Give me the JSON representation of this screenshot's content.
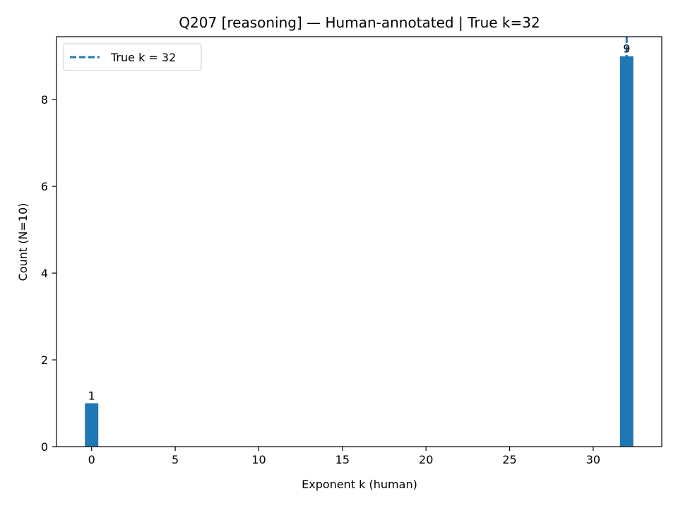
{
  "chart_data": {
    "type": "bar",
    "title": "Q207 [reasoning] — Human-annotated | True k=32",
    "xlabel": "Exponent k (human)",
    "ylabel": "Count (N=10)",
    "xlim": [
      -2.1,
      34.1
    ],
    "ylim": [
      0,
      9.45
    ],
    "xticks": [
      0,
      5,
      10,
      15,
      20,
      25,
      30
    ],
    "yticks": [
      0,
      2,
      4,
      6,
      8
    ],
    "bar_width": 0.8,
    "bars": [
      {
        "x": 0,
        "value": 1,
        "label": "1"
      },
      {
        "x": 32,
        "value": 9,
        "label": "9"
      }
    ],
    "reference_line": {
      "x": 32,
      "label": "True k = 32",
      "style": "dashed"
    },
    "legend": {
      "placement": "top-left",
      "entries": [
        "True k = 32"
      ]
    },
    "grid": false,
    "colors": {
      "bar": "#1f77b4",
      "line": "#1f77b4",
      "axis": "#000000"
    }
  }
}
